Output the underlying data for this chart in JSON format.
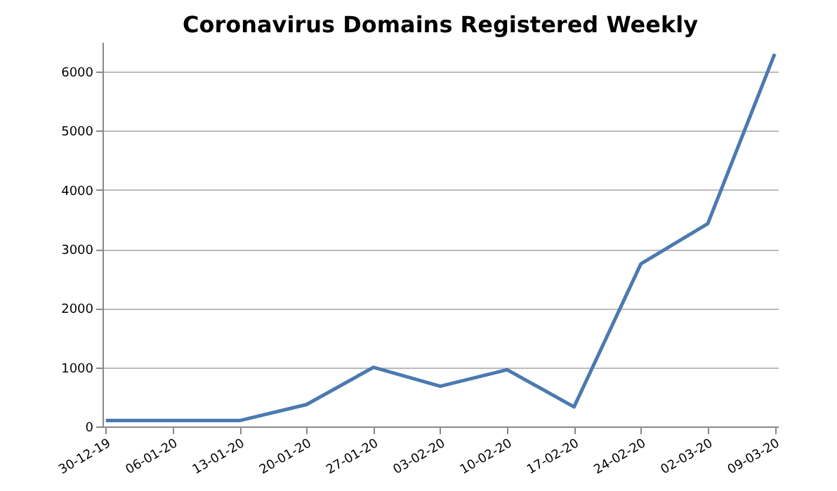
{
  "chart_data": {
    "type": "line",
    "title": "Coronavirus Domains Registered Weekly",
    "categories": [
      "30-12-19",
      "06-01-20",
      "13-01-20",
      "20-01-20",
      "27-01-20",
      "03-02-20",
      "10-02-20",
      "17-02-20",
      "24-02-20",
      "02-03-20",
      "09-03-20"
    ],
    "series": [
      {
        "color": "#4a7ab0",
        "values": [
          100,
          100,
          100,
          370,
          1000,
          680,
          960,
          330,
          2750,
          3430,
          6300
        ]
      }
    ],
    "ylim": [
      0,
      6500
    ],
    "yticks": [
      0,
      1000,
      2000,
      3000,
      4000,
      5000,
      6000
    ],
    "grid": "y",
    "marker": "none",
    "line_style": "solid",
    "legend": false
  }
}
